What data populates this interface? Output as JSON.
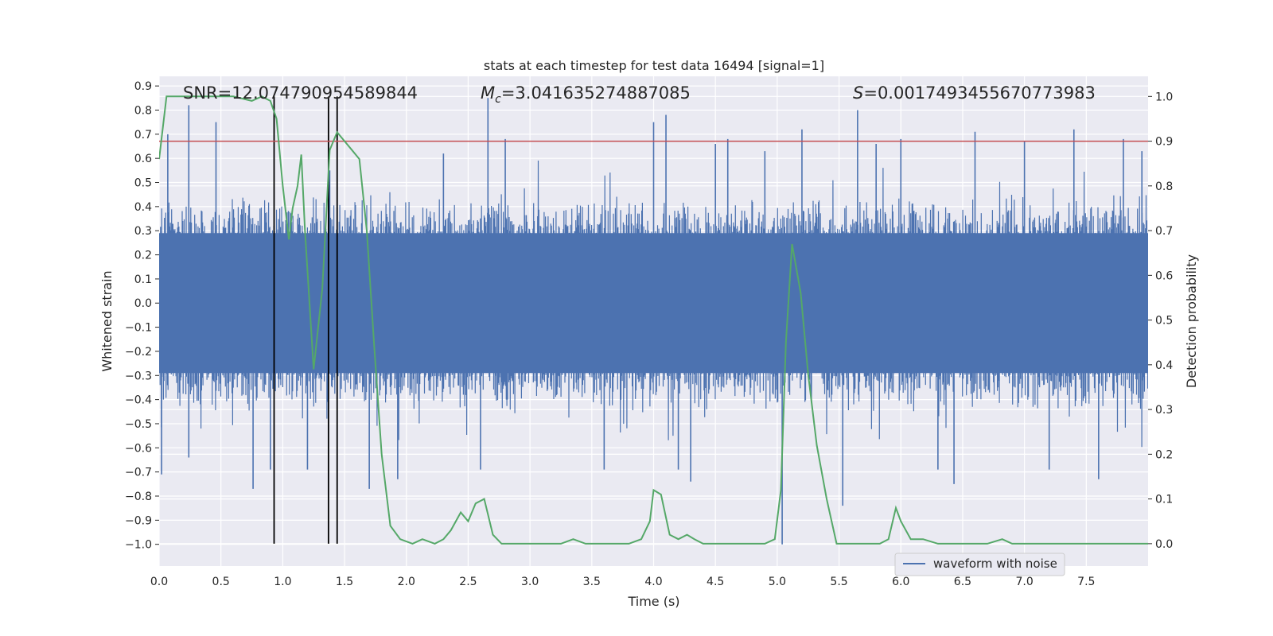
{
  "chart_data": {
    "type": "line",
    "title": "stats at each timestep for test data 16494 [signal=1]",
    "xlabel": "Time (s)",
    "ylabel": "Whitened strain",
    "y2label": "Detection probability",
    "xlim": [
      0.0,
      8.0
    ],
    "ylim": [
      -1.09,
      0.94
    ],
    "y2lim": [
      -0.05,
      1.045
    ],
    "xticks": [
      "0.0",
      "0.5",
      "1.0",
      "1.5",
      "2.0",
      "2.5",
      "3.0",
      "3.5",
      "4.0",
      "4.5",
      "5.0",
      "5.5",
      "6.0",
      "6.5",
      "7.0",
      "7.5"
    ],
    "yticks": [
      "0.9",
      "0.8",
      "0.7",
      "0.6",
      "0.5",
      "0.4",
      "0.3",
      "0.2",
      "0.1",
      "0.0",
      "−0.1",
      "−0.2",
      "−0.3",
      "−0.4",
      "−0.5",
      "−0.6",
      "−0.7",
      "−0.8",
      "−0.9",
      "−1.0"
    ],
    "y2ticks": [
      "1.0",
      "0.9",
      "0.8",
      "0.7",
      "0.6",
      "0.5",
      "0.4",
      "0.3",
      "0.2",
      "0.1",
      "0.0"
    ],
    "grid": true,
    "legend_position": "lower-right",
    "colors": {
      "waveform": "#4c72b0",
      "probability": "#55a868",
      "threshold": "#c44e52",
      "markers": "#000000",
      "background": "#eaeaf2",
      "grid": "#ffffff"
    },
    "annotations": {
      "snr": "SNR=12.074790954589844",
      "mc_symbol": "M",
      "mc_subscript": "c",
      "mc_value": "=3.041635274887085",
      "s_symbol": "S",
      "s_value": "=0.0017493455670773983"
    },
    "threshold_probability": 0.9,
    "vertical_markers_x": [
      0.93,
      1.37,
      1.44
    ],
    "series": [
      {
        "name": "waveform with noise",
        "kind": "noise-envelope",
        "core_amplitude": 0.29,
        "typical_peak": 0.45,
        "notable_peaks": [
          [
            0.02,
            -0.71
          ],
          [
            0.07,
            0.7
          ],
          [
            0.24,
            0.82
          ],
          [
            0.24,
            -0.64
          ],
          [
            0.46,
            0.75
          ],
          [
            0.76,
            -0.77
          ],
          [
            0.9,
            -0.69
          ],
          [
            1.2,
            -0.69
          ],
          [
            1.38,
            0.55
          ],
          [
            1.7,
            -0.77
          ],
          [
            1.93,
            -0.73
          ],
          [
            2.3,
            0.62
          ],
          [
            2.6,
            -0.69
          ],
          [
            2.66,
            0.85
          ],
          [
            2.8,
            0.68
          ],
          [
            3.6,
            -0.69
          ],
          [
            4.0,
            0.75
          ],
          [
            4.1,
            0.78
          ],
          [
            4.2,
            -0.69
          ],
          [
            4.3,
            -0.74
          ],
          [
            4.5,
            0.66
          ],
          [
            4.6,
            0.68
          ],
          [
            4.9,
            0.63
          ],
          [
            5.04,
            -1.0
          ],
          [
            5.2,
            0.72
          ],
          [
            5.53,
            -0.84
          ],
          [
            5.65,
            0.8
          ],
          [
            5.8,
            0.66
          ],
          [
            6.0,
            0.68
          ],
          [
            6.3,
            -0.69
          ],
          [
            6.43,
            -0.75
          ],
          [
            6.6,
            0.71
          ],
          [
            7.0,
            0.67
          ],
          [
            7.2,
            -0.69
          ],
          [
            7.4,
            0.72
          ],
          [
            7.6,
            -0.73
          ],
          [
            7.8,
            0.68
          ],
          [
            7.95,
            0.63
          ]
        ]
      },
      {
        "name": "detection probability",
        "x": [
          0.0,
          0.06,
          0.12,
          0.25,
          0.4,
          0.6,
          0.75,
          0.83,
          0.9,
          0.95,
          0.98,
          1.0,
          1.05,
          1.08,
          1.12,
          1.15,
          1.18,
          1.25,
          1.32,
          1.38,
          1.44,
          1.5,
          1.56,
          1.62,
          1.68,
          1.74,
          1.8,
          1.87,
          1.95,
          2.05,
          2.13,
          2.23,
          2.3,
          2.36,
          2.44,
          2.5,
          2.56,
          2.63,
          2.7,
          2.77,
          2.85,
          3.0,
          3.15,
          3.25,
          3.35,
          3.45,
          3.6,
          3.8,
          3.9,
          3.97,
          4.0,
          4.06,
          4.13,
          4.2,
          4.27,
          4.33,
          4.4,
          4.47,
          4.57,
          4.65,
          4.77,
          4.9,
          4.98,
          5.03,
          5.07,
          5.12,
          5.19,
          5.25,
          5.32,
          5.4,
          5.48,
          5.57,
          5.7,
          5.83,
          5.9,
          5.96,
          6.0,
          6.08,
          6.18,
          6.3,
          6.5,
          6.7,
          6.82,
          6.9,
          7.1,
          7.3,
          7.6,
          8.0
        ],
        "y": [
          0.86,
          1.0,
          1.0,
          1.0,
          1.0,
          1.0,
          0.99,
          1.0,
          0.99,
          0.95,
          0.86,
          0.8,
          0.68,
          0.75,
          0.8,
          0.87,
          0.7,
          0.39,
          0.57,
          0.88,
          0.92,
          0.9,
          0.88,
          0.86,
          0.7,
          0.44,
          0.2,
          0.04,
          0.01,
          0.0,
          0.01,
          0.0,
          0.01,
          0.03,
          0.07,
          0.05,
          0.09,
          0.1,
          0.02,
          0.0,
          0.0,
          0.0,
          0.0,
          0.0,
          0.01,
          0.0,
          0.0,
          0.0,
          0.01,
          0.05,
          0.12,
          0.11,
          0.02,
          0.01,
          0.02,
          0.01,
          0.0,
          0.0,
          0.0,
          0.0,
          0.0,
          0.0,
          0.01,
          0.12,
          0.45,
          0.67,
          0.56,
          0.38,
          0.22,
          0.1,
          0.0,
          0.0,
          0.0,
          0.0,
          0.01,
          0.08,
          0.05,
          0.01,
          0.01,
          0.0,
          0.0,
          0.0,
          0.01,
          0.0,
          0.0,
          0.0,
          0.0,
          0.0
        ]
      }
    ]
  }
}
